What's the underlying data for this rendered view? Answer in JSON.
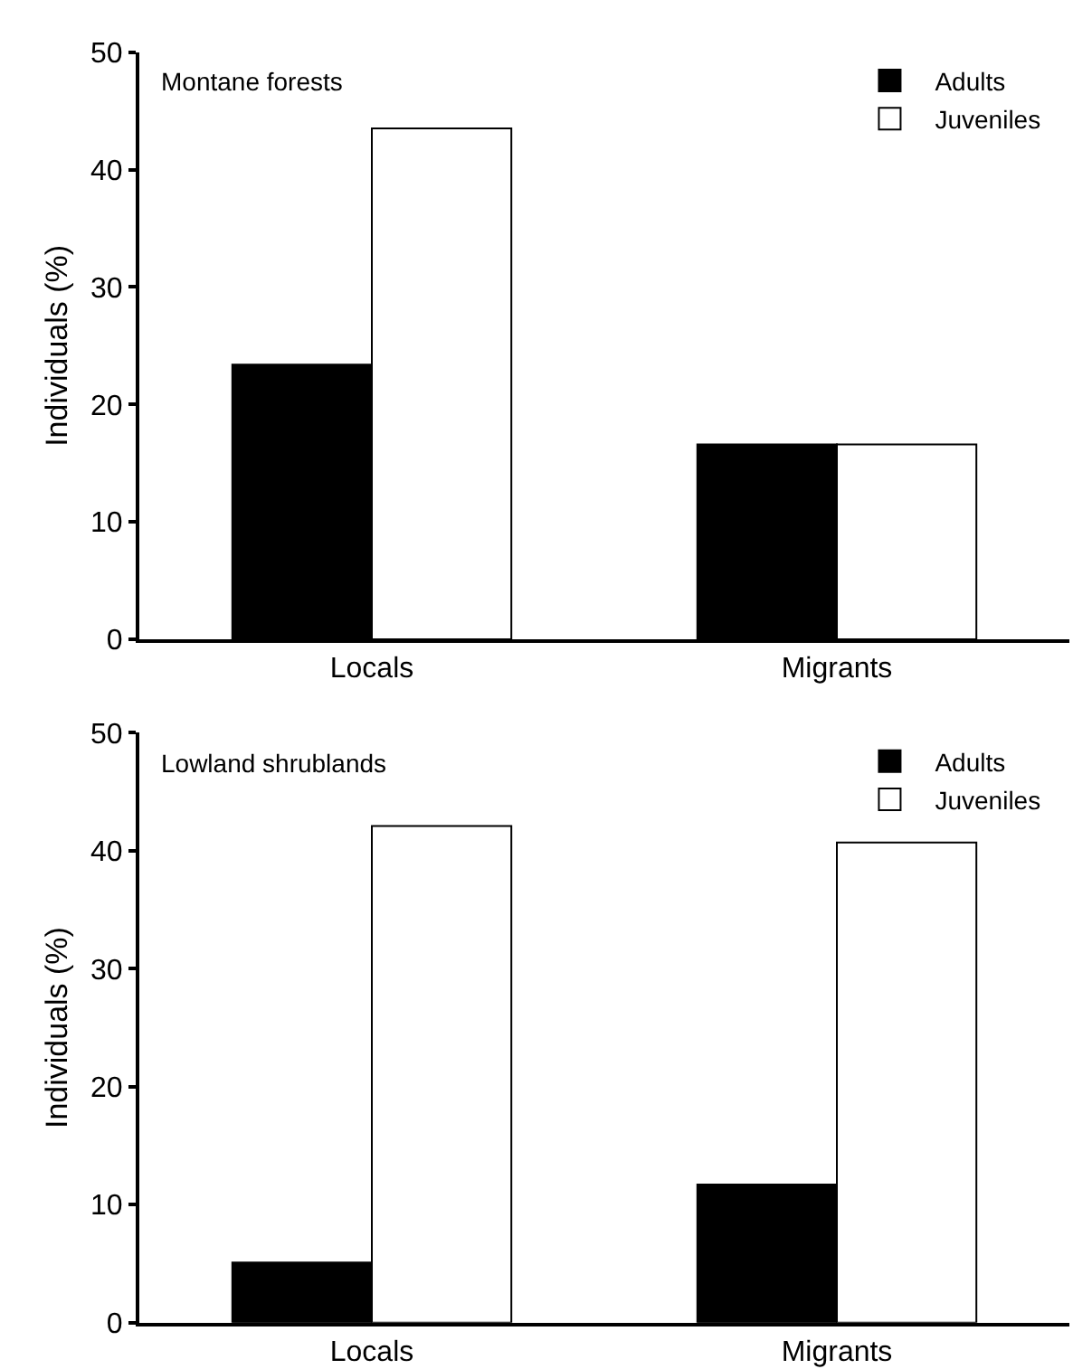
{
  "chart_data": [
    {
      "type": "bar",
      "title": "Montane forests",
      "ylabel": "Individuals (%)",
      "categories": [
        "Locals",
        "Migrants"
      ],
      "ylim": [
        0,
        50
      ],
      "yticks": [
        0,
        10,
        20,
        30,
        40,
        50
      ],
      "grid": false,
      "legend": "top right",
      "series": [
        {
          "name": "Adults",
          "color": "#000000",
          "values": [
            23.4,
            16.6
          ]
        },
        {
          "name": "Juveniles",
          "color": "#ffffff",
          "values": [
            43.5,
            16.6
          ]
        }
      ]
    },
    {
      "type": "bar",
      "title": "Lowland shrublands",
      "ylabel": "Individuals (%)",
      "categories": [
        "Locals",
        "Migrants"
      ],
      "ylim": [
        0,
        50
      ],
      "yticks": [
        0,
        10,
        20,
        30,
        40,
        50
      ],
      "grid": false,
      "legend": "top right",
      "series": [
        {
          "name": "Adults",
          "color": "#000000",
          "values": [
            5.1,
            11.7
          ]
        },
        {
          "name": "Juveniles",
          "color": "#ffffff",
          "values": [
            42.1,
            40.7
          ]
        }
      ]
    }
  ]
}
